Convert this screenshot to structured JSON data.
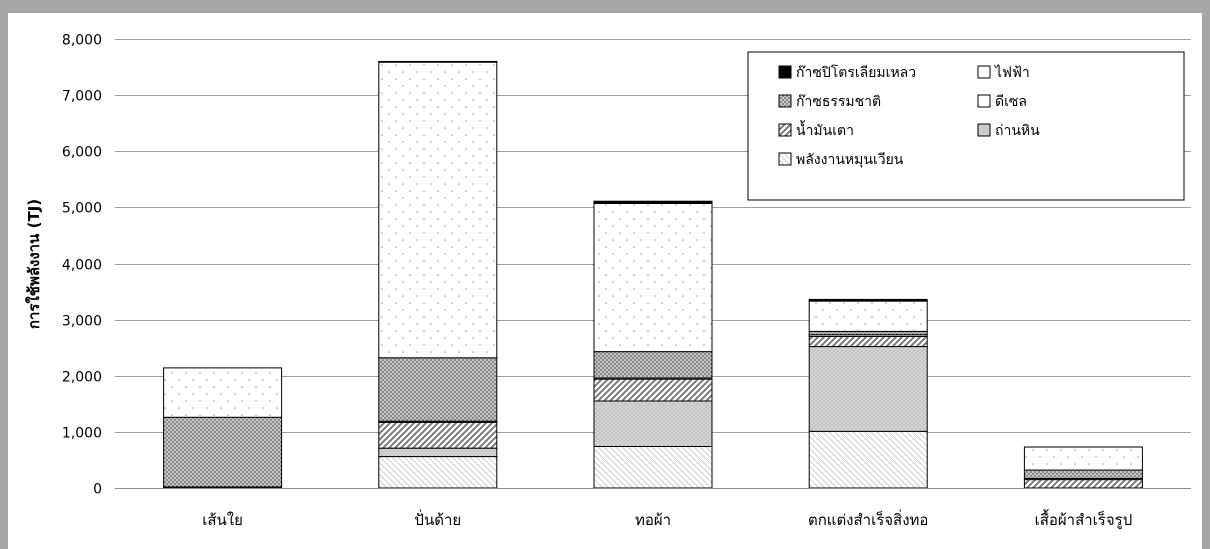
{
  "chart_data": {
    "type": "bar",
    "stacked": true,
    "title": "",
    "xlabel": "",
    "ylabel": "การใช้พลังงาน (TJ)",
    "ylim": [
      0,
      8000
    ],
    "yticks": [
      0,
      1000,
      2000,
      3000,
      4000,
      5000,
      6000,
      7000,
      8000
    ],
    "ytick_labels": [
      "0",
      "1,000",
      "2,000",
      "3,000",
      "4,000",
      "5,000",
      "6,000",
      "7,000",
      "8,000"
    ],
    "grid": true,
    "legend_position": "top-right",
    "categories": [
      "เส้นใย",
      "ปั่นด้าย",
      "ทอผ้า",
      "ตกแต่งสำเร็จสิ่งทอ",
      "เสื้อผ้าสำเร็จรูป"
    ],
    "series": [
      {
        "name": "พลังงานหมุนเวียน",
        "pattern": "fine-diagonal-down",
        "values": [
          0,
          560,
          740,
          1010,
          0
        ]
      },
      {
        "name": "ถ่านหิน",
        "pattern": "grey-crosshatch",
        "values": [
          0,
          150,
          810,
          1510,
          0
        ]
      },
      {
        "name": "น้ำมันเตา",
        "pattern": "diagonal-stripes",
        "values": [
          20,
          460,
          390,
          180,
          150
        ]
      },
      {
        "name": "ดีเซล",
        "pattern": "solid-white",
        "values": [
          0,
          20,
          20,
          30,
          20
        ]
      },
      {
        "name": "ก๊าซธรรมชาติ",
        "pattern": "dark-dots",
        "values": [
          1240,
          1130,
          470,
          60,
          150
        ]
      },
      {
        "name": "ไฟฟ้า",
        "pattern": "light-dots",
        "values": [
          880,
          5270,
          2640,
          540,
          410
        ]
      },
      {
        "name": "ก๊าซปิโตรเลียมเหลว",
        "pattern": "solid-black",
        "values": [
          0,
          10,
          40,
          30,
          0
        ]
      }
    ],
    "legend_order": [
      "ก๊าซปิโตรเลียมเหลว",
      "ไฟฟ้า",
      "ก๊าซธรรมชาติ",
      "ดีเซล",
      "น้ำมันเตา",
      "ถ่านหิน",
      "พลังงานหมุนเวียน"
    ]
  }
}
